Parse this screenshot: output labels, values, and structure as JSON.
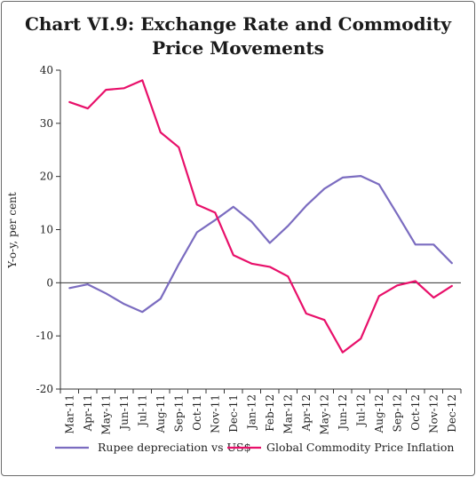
{
  "chart_data": {
    "type": "line",
    "title_line1": "Chart VI.9: Exchange Rate and Commodity",
    "title_line2": "Price Movements",
    "ylabel": "Y-o-y, per cent",
    "xlabel": "",
    "ylim": [
      -20,
      40
    ],
    "yticks": [
      40,
      30,
      20,
      10,
      0,
      -10,
      -20
    ],
    "grid": false,
    "legend_position": "bottom",
    "categories": [
      "Mar-11",
      "Apr-11",
      "May-11",
      "Jun-11",
      "Jul-11",
      "Aug-11",
      "Sep-11",
      "Oct-11",
      "Nov-11",
      "Dec-11",
      "Jan-12",
      "Feb-12",
      "Mar-12",
      "Apr-12",
      "May-12",
      "Jun-12",
      "Jul-12",
      "Aug-12",
      "Sep-12",
      "Oct-12",
      "Nov-12",
      "Dec-12"
    ],
    "series": [
      {
        "name": "Rupee depreciation vs US$",
        "color": "#7b6cc0",
        "values": [
          -1.0,
          -0.3,
          -2.0,
          -4.0,
          -5.5,
          -3.0,
          3.5,
          9.5,
          11.8,
          14.3,
          11.5,
          7.5,
          10.7,
          14.5,
          17.7,
          19.8,
          20.1,
          18.5,
          12.9,
          7.2,
          7.2,
          3.7
        ]
      },
      {
        "name": "Global Commodity Price Inflation",
        "color": "#e8106a",
        "values": [
          34.0,
          32.8,
          36.3,
          36.6,
          38.1,
          28.3,
          25.5,
          14.7,
          13.2,
          5.2,
          3.6,
          3.0,
          1.2,
          -5.8,
          -7.0,
          -13.1,
          -10.5,
          -2.5,
          -0.5,
          0.3,
          -2.8,
          -0.6
        ]
      }
    ]
  }
}
